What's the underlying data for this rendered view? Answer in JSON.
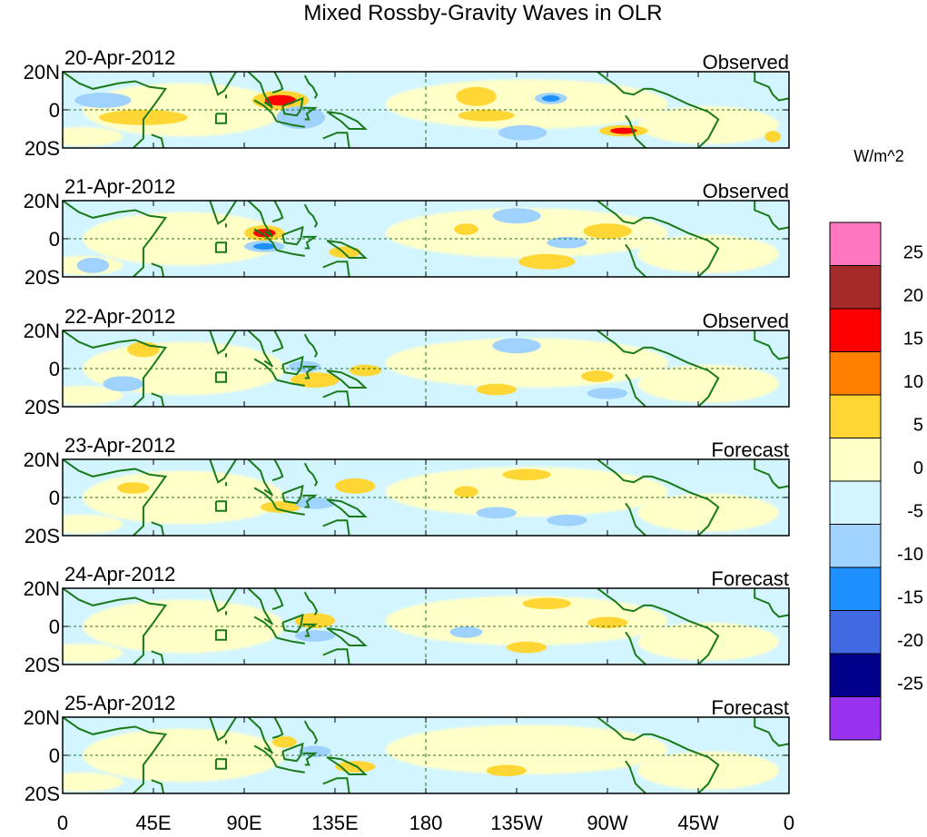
{
  "chart_data": {
    "type": "heatmap",
    "title": "Mixed Rossby-Gravity Waves in OLR",
    "colorbar": {
      "units": "W/m^2",
      "levels": [
        25,
        20,
        15,
        10,
        5,
        0,
        -5,
        -10,
        -15,
        -20,
        -25
      ],
      "colors": [
        "#ff77c0",
        "#a52a2a",
        "#ff0000",
        "#ff7f00",
        "#ffd633",
        "#ffffc8",
        "#d2f5ff",
        "#a0d2ff",
        "#1e90ff",
        "#4169e1",
        "#00008b",
        "#9932f0"
      ]
    },
    "x_ticks": [
      "0",
      "45E",
      "90E",
      "135E",
      "180",
      "135W",
      "90W",
      "45W",
      "0"
    ],
    "y_ticks": [
      "20N",
      "0",
      "20S"
    ],
    "lat_range": [
      -20,
      20
    ],
    "lon_range": [
      0,
      360
    ],
    "panels": [
      {
        "date": "20-Apr-2012",
        "status": "Observed",
        "anomalies": [
          {
            "lon": 108,
            "lat": 5,
            "rx": 14,
            "ry": 5,
            "v": 18
          },
          {
            "lon": 40,
            "lat": -4,
            "rx": 22,
            "ry": 4,
            "v": 7
          },
          {
            "lon": 205,
            "lat": 7,
            "rx": 10,
            "ry": 5,
            "v": 7
          },
          {
            "lon": 278,
            "lat": -11,
            "rx": 12,
            "ry": 3,
            "v": 16
          },
          {
            "lon": 242,
            "lat": 6,
            "rx": 8,
            "ry": 3,
            "v": -14
          },
          {
            "lon": 118,
            "lat": -4,
            "rx": 12,
            "ry": 6,
            "v": -8
          },
          {
            "lon": 20,
            "lat": 5,
            "rx": 14,
            "ry": 4,
            "v": -6
          },
          {
            "lon": 228,
            "lat": -12,
            "rx": 12,
            "ry": 4,
            "v": -6
          },
          {
            "lon": 210,
            "lat": -3,
            "rx": 14,
            "ry": 3,
            "v": 6
          },
          {
            "lon": 352,
            "lat": -14,
            "rx": 4,
            "ry": 3,
            "v": 7
          }
        ]
      },
      {
        "date": "21-Apr-2012",
        "status": "Observed",
        "anomalies": [
          {
            "lon": 100,
            "lat": 3,
            "rx": 10,
            "ry": 4,
            "v": 16
          },
          {
            "lon": 100,
            "lat": -4,
            "rx": 10,
            "ry": 3,
            "v": -13
          },
          {
            "lon": 240,
            "lat": -12,
            "rx": 14,
            "ry": 4,
            "v": 8
          },
          {
            "lon": 225,
            "lat": 12,
            "rx": 12,
            "ry": 4,
            "v": -8
          },
          {
            "lon": 200,
            "lat": 5,
            "rx": 6,
            "ry": 3,
            "v": 7
          },
          {
            "lon": 270,
            "lat": 4,
            "rx": 12,
            "ry": 4,
            "v": 7
          },
          {
            "lon": 15,
            "lat": -14,
            "rx": 8,
            "ry": 4,
            "v": -6
          },
          {
            "lon": 140,
            "lat": -7,
            "rx": 8,
            "ry": 3,
            "v": 6
          },
          {
            "lon": 250,
            "lat": -2,
            "rx": 10,
            "ry": 3,
            "v": -6
          }
        ]
      },
      {
        "date": "22-Apr-2012",
        "status": "Observed",
        "anomalies": [
          {
            "lon": 125,
            "lat": -6,
            "rx": 12,
            "ry": 4,
            "v": 8
          },
          {
            "lon": 120,
            "lat": 1,
            "rx": 8,
            "ry": 3,
            "v": -7
          },
          {
            "lon": 40,
            "lat": 10,
            "rx": 8,
            "ry": 4,
            "v": 7
          },
          {
            "lon": 225,
            "lat": 12,
            "rx": 12,
            "ry": 4,
            "v": -7
          },
          {
            "lon": 215,
            "lat": -11,
            "rx": 10,
            "ry": 3,
            "v": 7
          },
          {
            "lon": 265,
            "lat": -4,
            "rx": 8,
            "ry": 3,
            "v": 7
          },
          {
            "lon": 30,
            "lat": -8,
            "rx": 10,
            "ry": 4,
            "v": -6
          },
          {
            "lon": 270,
            "lat": -13,
            "rx": 10,
            "ry": 3,
            "v": -6
          },
          {
            "lon": 150,
            "lat": -1,
            "rx": 8,
            "ry": 3,
            "v": 6
          }
        ]
      },
      {
        "date": "23-Apr-2012",
        "status": "Forecast",
        "anomalies": [
          {
            "lon": 145,
            "lat": 6,
            "rx": 10,
            "ry": 4,
            "v": 7
          },
          {
            "lon": 108,
            "lat": -5,
            "rx": 10,
            "ry": 3,
            "v": 7
          },
          {
            "lon": 230,
            "lat": 12,
            "rx": 12,
            "ry": 3,
            "v": 6
          },
          {
            "lon": 215,
            "lat": -8,
            "rx": 10,
            "ry": 3,
            "v": -6
          },
          {
            "lon": 125,
            "lat": -3,
            "rx": 10,
            "ry": 3,
            "v": -6
          },
          {
            "lon": 250,
            "lat": -12,
            "rx": 10,
            "ry": 3,
            "v": -6
          },
          {
            "lon": 35,
            "lat": 5,
            "rx": 8,
            "ry": 3,
            "v": 6
          },
          {
            "lon": 200,
            "lat": 3,
            "rx": 6,
            "ry": 3,
            "v": 6
          }
        ]
      },
      {
        "date": "24-Apr-2012",
        "status": "Forecast",
        "anomalies": [
          {
            "lon": 125,
            "lat": 3,
            "rx": 10,
            "ry": 4,
            "v": 7
          },
          {
            "lon": 125,
            "lat": -5,
            "rx": 10,
            "ry": 3,
            "v": -7
          },
          {
            "lon": 270,
            "lat": 2,
            "rx": 10,
            "ry": 3,
            "v": 6
          },
          {
            "lon": 200,
            "lat": -3,
            "rx": 8,
            "ry": 3,
            "v": -6
          },
          {
            "lon": 240,
            "lat": 12,
            "rx": 12,
            "ry": 3,
            "v": 6
          },
          {
            "lon": 230,
            "lat": -11,
            "rx": 10,
            "ry": 3,
            "v": 6
          }
        ]
      },
      {
        "date": "25-Apr-2012",
        "status": "Forecast",
        "anomalies": [
          {
            "lon": 145,
            "lat": -6,
            "rx": 10,
            "ry": 3,
            "v": 7
          },
          {
            "lon": 125,
            "lat": 2,
            "rx": 8,
            "ry": 3,
            "v": -6
          },
          {
            "lon": 110,
            "lat": 7,
            "rx": 6,
            "ry": 3,
            "v": 6
          },
          {
            "lon": 220,
            "lat": -8,
            "rx": 10,
            "ry": 3,
            "v": 6
          }
        ]
      }
    ]
  }
}
